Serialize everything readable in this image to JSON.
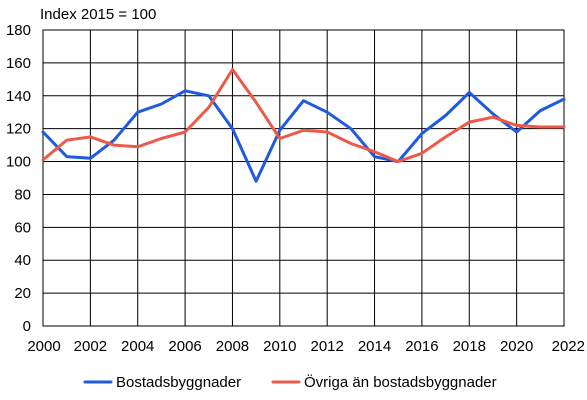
{
  "chart_data": {
    "type": "line",
    "unit_label": "Index 2015 = 100",
    "xlabel": "",
    "ylabel": "",
    "x": [
      2000,
      2001,
      2002,
      2003,
      2004,
      2005,
      2006,
      2007,
      2008,
      2009,
      2010,
      2011,
      2012,
      2013,
      2014,
      2015,
      2016,
      2017,
      2018,
      2019,
      2020,
      2021,
      2022
    ],
    "x_ticks": [
      "2000",
      "2002",
      "2004",
      "2006",
      "2008",
      "2010",
      "2012",
      "2014",
      "2016",
      "2018",
      "2020",
      "2022"
    ],
    "y_ticks": [
      "0",
      "20",
      "40",
      "60",
      "80",
      "100",
      "120",
      "140",
      "160",
      "180"
    ],
    "ylim": [
      0,
      180
    ],
    "xlim": [
      2000,
      2022
    ],
    "grid": true,
    "legend_position": "bottom",
    "series": [
      {
        "name": "Bostadsbyggnader",
        "color": "#1f5ae0",
        "values": [
          118,
          103,
          102,
          113,
          130,
          135,
          143,
          140,
          120,
          88,
          119,
          137,
          130,
          120,
          103,
          100,
          117,
          128,
          142,
          129,
          118,
          131,
          138
        ]
      },
      {
        "name": "Övriga än bostadsbyggnader",
        "color": "#ee5a4a",
        "values": [
          101,
          113,
          115,
          110,
          109,
          114,
          118,
          133,
          156,
          136,
          114,
          119,
          118,
          111,
          106,
          100,
          105,
          115,
          124,
          127,
          122,
          121,
          121
        ]
      }
    ]
  }
}
